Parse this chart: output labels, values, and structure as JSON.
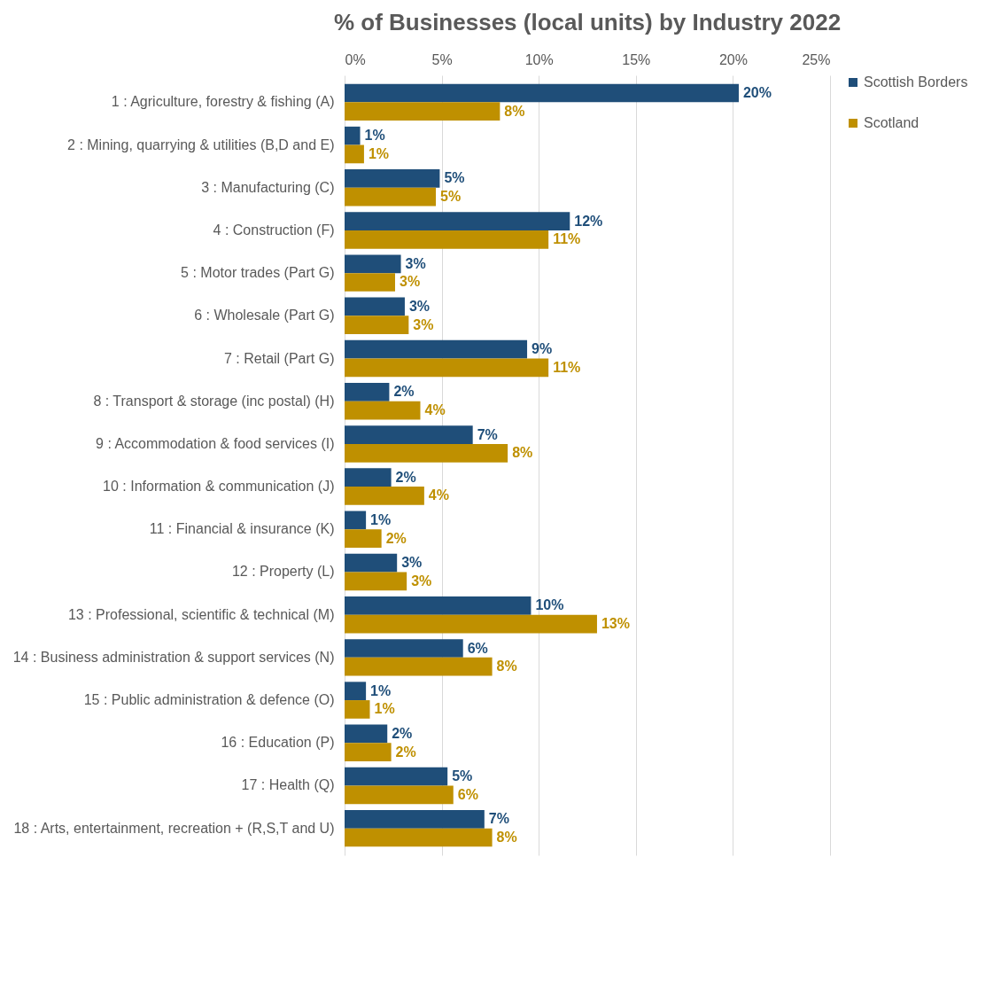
{
  "chart_data": {
    "type": "bar",
    "orientation": "horizontal",
    "title": "% of Businesses (local units) by Industry 2022",
    "categories": [
      "1 : Agriculture, forestry & fishing (A)",
      "2 : Mining, quarrying & utilities (B,D and E)",
      "3 : Manufacturing (C)",
      "4 : Construction (F)",
      "5 : Motor trades (Part G)",
      "6 : Wholesale (Part G)",
      "7 : Retail (Part G)",
      "8 : Transport & storage (inc postal) (H)",
      "9 : Accommodation & food services (I)",
      "10 : Information & communication (J)",
      "11 : Financial & insurance (K)",
      "12 : Property (L)",
      "13 : Professional, scientific & technical (M)",
      "14 : Business administration & support services (N)",
      "15 : Public administration & defence (O)",
      "16 : Education (P)",
      "17 : Health (Q)",
      "18 : Arts, entertainment, recreation + (R,S,T and U)"
    ],
    "series": [
      {
        "name": "Scottish Borders",
        "color": "#1f4e79",
        "values": [
          20.3,
          0.8,
          4.9,
          11.6,
          2.9,
          3.1,
          9.4,
          2.3,
          6.6,
          2.4,
          1.1,
          2.7,
          9.6,
          6.1,
          1.1,
          2.2,
          5.3,
          7.2
        ],
        "value_labels": [
          "20%",
          "1%",
          "5%",
          "12%",
          "3%",
          "3%",
          "9%",
          "2%",
          "7%",
          "2%",
          "1%",
          "3%",
          "10%",
          "6%",
          "1%",
          "2%",
          "5%",
          "7%"
        ]
      },
      {
        "name": "Scotland",
        "color": "#bf9000",
        "values": [
          8.0,
          1.0,
          4.7,
          10.5,
          2.6,
          3.3,
          10.5,
          3.9,
          8.4,
          4.1,
          1.9,
          3.2,
          13.0,
          7.6,
          1.3,
          2.4,
          5.6,
          7.6
        ],
        "value_labels": [
          "8%",
          "1%",
          "5%",
          "11%",
          "3%",
          "3%",
          "11%",
          "4%",
          "8%",
          "4%",
          "2%",
          "3%",
          "13%",
          "8%",
          "1%",
          "2%",
          "6%",
          "8%"
        ]
      }
    ],
    "xlim": [
      0,
      25
    ],
    "xticks": [
      {
        "value": 0,
        "label": "0%"
      },
      {
        "value": 5,
        "label": "5%"
      },
      {
        "value": 10,
        "label": "10%"
      },
      {
        "value": 15,
        "label": "15%"
      },
      {
        "value": 20,
        "label": "20%"
      },
      {
        "value": 25,
        "label": "25%"
      }
    ],
    "grid": "x",
    "legend": "right"
  }
}
